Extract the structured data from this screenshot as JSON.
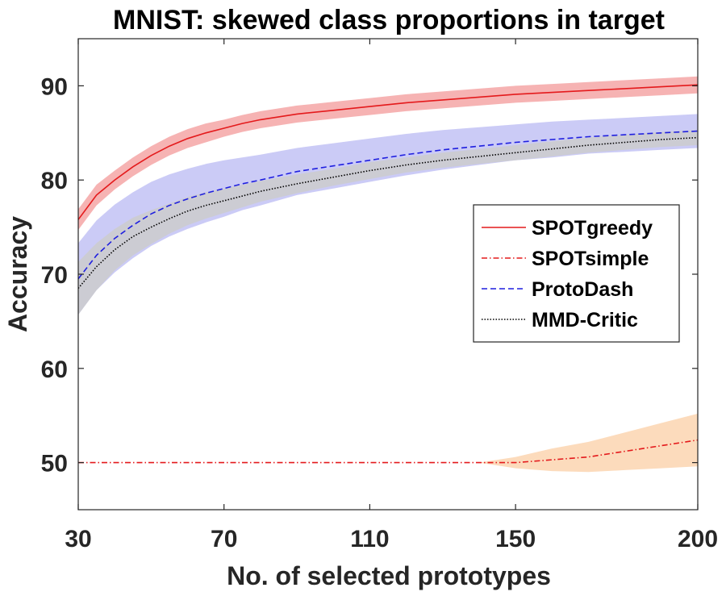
{
  "chart_data": {
    "type": "line",
    "title": "MNIST: skewed class proportions in target",
    "xlabel": "No. of selected prototypes",
    "ylabel": "Accuracy",
    "xlim": [
      30,
      200
    ],
    "ylim": [
      45,
      95
    ],
    "xticks": [
      30,
      70,
      110,
      150,
      200
    ],
    "yticks": [
      50,
      60,
      70,
      80,
      90
    ],
    "xtick_labels": [
      "30",
      "70",
      "110",
      "150",
      "200"
    ],
    "ytick_labels": [
      "50",
      "60",
      "70",
      "80",
      "90"
    ],
    "grid": false,
    "legend_position": "right",
    "x": [
      30,
      35,
      40,
      45,
      50,
      55,
      60,
      65,
      70,
      75,
      80,
      90,
      100,
      110,
      120,
      130,
      140,
      150,
      160,
      170,
      180,
      190,
      200
    ],
    "series": [
      {
        "name": "SPOTgreedy",
        "color": "#e41a1c",
        "dash": "solid",
        "band_color": "#f4a6a6",
        "values": [
          75.8,
          78.4,
          80.0,
          81.4,
          82.6,
          83.6,
          84.4,
          85.0,
          85.5,
          86.0,
          86.4,
          87.0,
          87.4,
          87.8,
          88.2,
          88.5,
          88.8,
          89.1,
          89.3,
          89.5,
          89.7,
          89.9,
          90.1
        ],
        "band": [
          1.1,
          1.1,
          1.0,
          1.0,
          1.0,
          1.0,
          1.0,
          1.0,
          0.9,
          0.9,
          0.9,
          0.9,
          0.9,
          0.9,
          0.9,
          0.9,
          0.9,
          0.9,
          0.9,
          0.9,
          0.9,
          0.9,
          0.9
        ]
      },
      {
        "name": "SPOTsimple",
        "color": "#e41a1c",
        "dash": "dashdot",
        "band_color": "#fcd5b0",
        "values": [
          50.0,
          50.0,
          50.0,
          50.0,
          50.0,
          50.0,
          50.0,
          50.0,
          50.0,
          50.0,
          50.0,
          50.0,
          50.0,
          50.0,
          50.0,
          50.0,
          50.0,
          50.0,
          50.3,
          50.6,
          51.2,
          51.8,
          52.4
        ],
        "band": [
          0,
          0,
          0,
          0,
          0,
          0,
          0,
          0,
          0,
          0,
          0,
          0,
          0,
          0,
          0,
          0,
          0,
          0.6,
          1.2,
          1.6,
          2.0,
          2.4,
          2.8
        ]
      },
      {
        "name": "ProtoDash",
        "color": "#1f1fdf",
        "dash": "dashed",
        "band_color": "#c2c2f5",
        "values": [
          69.5,
          72.0,
          73.8,
          75.2,
          76.4,
          77.3,
          78.0,
          78.6,
          79.1,
          79.6,
          80.0,
          80.9,
          81.5,
          82.1,
          82.7,
          83.2,
          83.6,
          84.0,
          84.3,
          84.6,
          84.8,
          85.0,
          85.2
        ],
        "band": [
          3.8,
          3.7,
          3.6,
          3.5,
          3.4,
          3.3,
          3.2,
          3.1,
          3.0,
          2.8,
          2.7,
          2.5,
          2.4,
          2.3,
          2.2,
          2.1,
          2.0,
          1.9,
          1.9,
          1.8,
          1.8,
          1.8,
          1.8
        ]
      },
      {
        "name": "MMD-Critic",
        "color": "#000000",
        "dash": "dotted",
        "band_color": "#cccccc",
        "values": [
          68.5,
          70.8,
          72.6,
          74.0,
          75.0,
          75.9,
          76.7,
          77.3,
          77.8,
          78.3,
          78.8,
          79.6,
          80.3,
          81.0,
          81.6,
          82.1,
          82.5,
          82.9,
          83.3,
          83.7,
          84.0,
          84.3,
          84.5
        ],
        "band": [
          2.8,
          2.5,
          2.2,
          2.0,
          1.8,
          1.6,
          1.5,
          1.4,
          1.3,
          1.2,
          1.1,
          1.0,
          0.9,
          0.9,
          0.8,
          0.8,
          0.8,
          0.8,
          0.8,
          0.8,
          0.8,
          0.8,
          0.8
        ]
      }
    ]
  }
}
